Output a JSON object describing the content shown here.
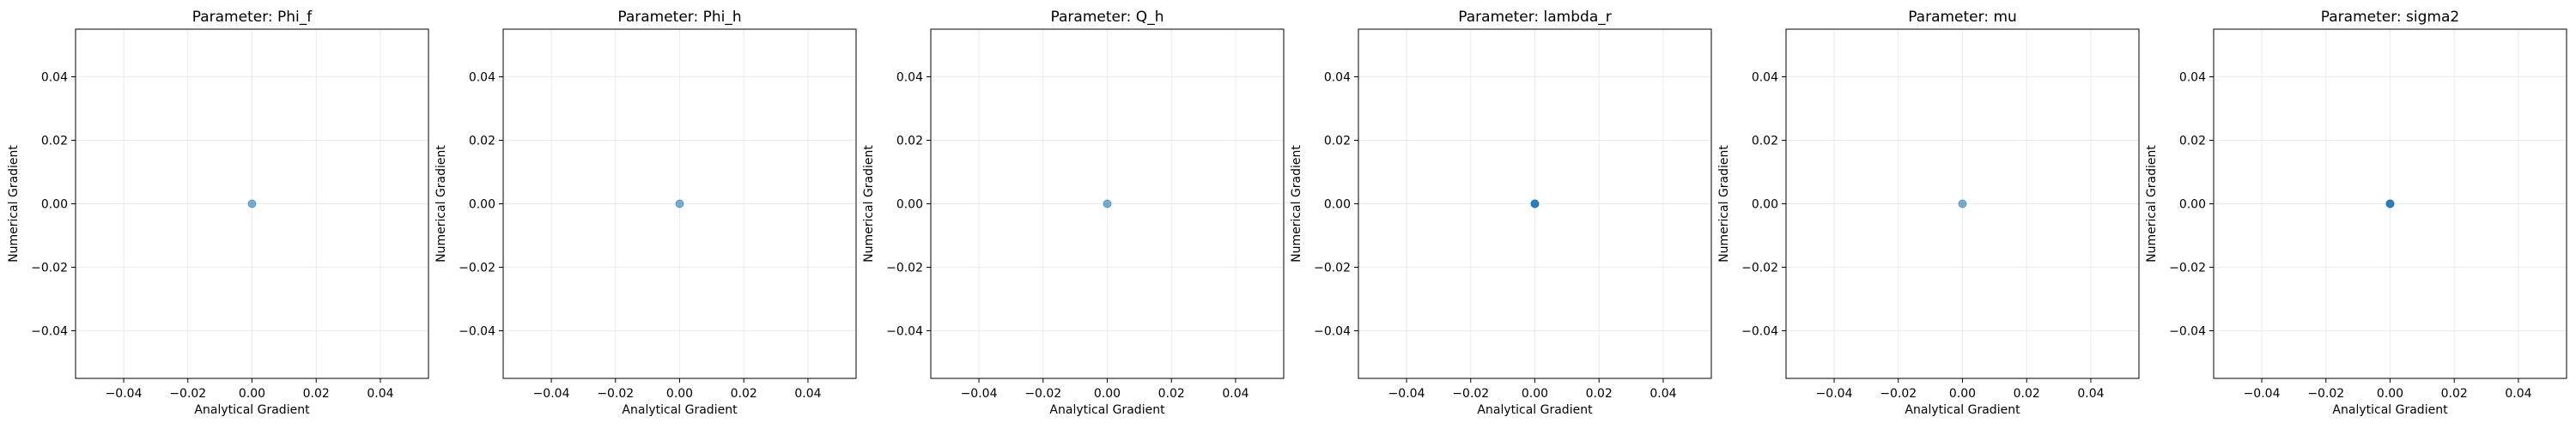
{
  "chart_data": [
    {
      "type": "scatter",
      "title": "Parameter: Phi_f",
      "xlabel": "Analytical Gradient",
      "ylabel": "Numerical Gradient",
      "xlim": [
        -0.055,
        0.055
      ],
      "ylim": [
        -0.055,
        0.055
      ],
      "xticks": [
        -0.04,
        -0.02,
        0.0,
        0.02,
        0.04
      ],
      "yticks": [
        -0.04,
        -0.02,
        0.0,
        0.02,
        0.04
      ],
      "xticklabels": [
        "−0.04",
        "−0.02",
        "0.00",
        "0.02",
        "0.04"
      ],
      "yticklabels": [
        "−0.04",
        "−0.02",
        "0.00",
        "0.02",
        "0.04"
      ],
      "grid": true,
      "color": "#1f77b4",
      "points": [
        {
          "x": 0.0,
          "y": 0.0
        }
      ]
    },
    {
      "type": "scatter",
      "title": "Parameter: Phi_h",
      "xlabel": "Analytical Gradient",
      "ylabel": "Numerical Gradient",
      "xlim": [
        -0.055,
        0.055
      ],
      "ylim": [
        -0.055,
        0.055
      ],
      "xticks": [
        -0.04,
        -0.02,
        0.0,
        0.02,
        0.04
      ],
      "yticks": [
        -0.04,
        -0.02,
        0.0,
        0.02,
        0.04
      ],
      "xticklabels": [
        "−0.04",
        "−0.02",
        "0.00",
        "0.02",
        "0.04"
      ],
      "yticklabels": [
        "−0.04",
        "−0.02",
        "0.00",
        "0.02",
        "0.04"
      ],
      "grid": true,
      "color": "#1f77b4",
      "points": [
        {
          "x": 0.0,
          "y": 0.0
        }
      ]
    },
    {
      "type": "scatter",
      "title": "Parameter: Q_h",
      "xlabel": "Analytical Gradient",
      "ylabel": "Numerical Gradient",
      "xlim": [
        -0.055,
        0.055
      ],
      "ylim": [
        -0.055,
        0.055
      ],
      "xticks": [
        -0.04,
        -0.02,
        0.0,
        0.02,
        0.04
      ],
      "yticks": [
        -0.04,
        -0.02,
        0.0,
        0.02,
        0.04
      ],
      "xticklabels": [
        "−0.04",
        "−0.02",
        "0.00",
        "0.02",
        "0.04"
      ],
      "yticklabels": [
        "−0.04",
        "−0.02",
        "0.00",
        "0.02",
        "0.04"
      ],
      "grid": true,
      "color": "#1f77b4",
      "points": [
        {
          "x": 0.0,
          "y": 0.0
        }
      ]
    },
    {
      "type": "scatter",
      "title": "Parameter: lambda_r",
      "xlabel": "Analytical Gradient",
      "ylabel": "Numerical Gradient",
      "xlim": [
        -0.055,
        0.055
      ],
      "ylim": [
        -0.055,
        0.055
      ],
      "xticks": [
        -0.04,
        -0.02,
        0.0,
        0.02,
        0.04
      ],
      "yticks": [
        -0.04,
        -0.02,
        0.0,
        0.02,
        0.04
      ],
      "xticklabels": [
        "−0.04",
        "−0.02",
        "0.00",
        "0.02",
        "0.04"
      ],
      "yticklabels": [
        "−0.04",
        "−0.02",
        "0.00",
        "0.02",
        "0.04"
      ],
      "grid": true,
      "color": "#1f77b4",
      "points": [
        {
          "x": 0.0,
          "y": 0.0
        },
        {
          "x": 0.0,
          "y": 0.0
        },
        {
          "x": 0.0,
          "y": 0.0
        }
      ]
    },
    {
      "type": "scatter",
      "title": "Parameter: mu",
      "xlabel": "Analytical Gradient",
      "ylabel": "Numerical Gradient",
      "xlim": [
        -0.055,
        0.055
      ],
      "ylim": [
        -0.055,
        0.055
      ],
      "xticks": [
        -0.04,
        -0.02,
        0.0,
        0.02,
        0.04
      ],
      "yticks": [
        -0.04,
        -0.02,
        0.0,
        0.02,
        0.04
      ],
      "xticklabels": [
        "−0.04",
        "−0.02",
        "0.00",
        "0.02",
        "0.04"
      ],
      "yticklabels": [
        "−0.04",
        "−0.02",
        "0.00",
        "0.02",
        "0.04"
      ],
      "grid": true,
      "color": "#1f77b4",
      "points": [
        {
          "x": 0.0,
          "y": 0.0
        }
      ]
    },
    {
      "type": "scatter",
      "title": "Parameter: sigma2",
      "xlabel": "Analytical Gradient",
      "ylabel": "Numerical Gradient",
      "xlim": [
        -0.055,
        0.055
      ],
      "ylim": [
        -0.055,
        0.055
      ],
      "xticks": [
        -0.04,
        -0.02,
        0.0,
        0.02,
        0.04
      ],
      "yticks": [
        -0.04,
        -0.02,
        0.0,
        0.02,
        0.04
      ],
      "xticklabels": [
        "−0.04",
        "−0.02",
        "0.00",
        "0.02",
        "0.04"
      ],
      "yticklabels": [
        "−0.04",
        "−0.02",
        "0.00",
        "0.02",
        "0.04"
      ],
      "grid": true,
      "color": "#1f77b4",
      "points": [
        {
          "x": 0.0,
          "y": 0.0
        },
        {
          "x": 0.0,
          "y": 0.0
        },
        {
          "x": 0.0,
          "y": 0.0
        }
      ]
    }
  ]
}
